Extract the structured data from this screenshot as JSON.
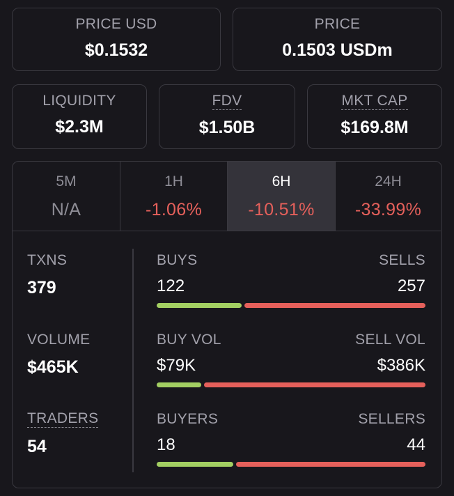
{
  "top_cards": {
    "price_usd": {
      "label": "PRICE USD",
      "value": "$0.1532"
    },
    "price_native": {
      "label": "PRICE",
      "value": "0.1503 USDm"
    },
    "liquidity": {
      "label": "LIQUIDITY",
      "value": "$2.3M"
    },
    "fdv": {
      "label": "FDV",
      "value": "$1.50B"
    },
    "mkt_cap": {
      "label": "MKT CAP",
      "value": "$169.8M"
    }
  },
  "tabs": [
    {
      "label": "5M",
      "value": "N/A"
    },
    {
      "label": "1H",
      "value": "-1.06%"
    },
    {
      "label": "6H",
      "value": "-10.51%"
    },
    {
      "label": "24H",
      "value": "-33.99%"
    }
  ],
  "active_tab": "6H",
  "metrics": {
    "txns": {
      "label": "TXNS",
      "value": "379"
    },
    "volume": {
      "label": "VOLUME",
      "value": "$465K"
    },
    "traders": {
      "label": "TRADERS",
      "value": "54"
    }
  },
  "rows": {
    "txns": {
      "left_label": "BUYS",
      "right_label": "SELLS",
      "left_value": "122",
      "right_value": "257",
      "buy_fraction": 0.322
    },
    "volume": {
      "left_label": "BUY VOL",
      "right_label": "SELL VOL",
      "left_value": "$79K",
      "right_value": "$386K",
      "buy_fraction": 0.17
    },
    "traders": {
      "left_label": "BUYERS",
      "right_label": "SELLERS",
      "left_value": "18",
      "right_value": "44",
      "buy_fraction": 0.29
    }
  },
  "colors": {
    "background": "#18171c",
    "border": "#3a3940",
    "negative": "#e5605b",
    "buy_bar": "#a3cf62",
    "sell_bar": "#e5605b",
    "active_tab_bg": "#34333a"
  }
}
